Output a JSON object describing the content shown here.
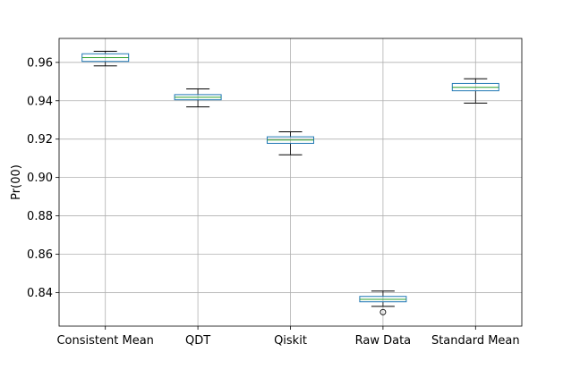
{
  "chart_data": {
    "type": "box",
    "title": "",
    "xlabel": "",
    "ylabel": "Pr(00)",
    "ylim": [
      0.8225,
      0.9725
    ],
    "yticks": [
      0.84,
      0.86,
      0.88,
      0.9,
      0.92,
      0.94,
      0.96
    ],
    "ytick_labels": [
      "0.84",
      "0.86",
      "0.88",
      "0.90",
      "0.92",
      "0.94",
      "0.96"
    ],
    "grid": true,
    "categories": [
      "Consistent Mean",
      "QDT",
      "Qiskit",
      "Raw Data",
      "Standard Mean"
    ],
    "boxes": [
      {
        "whisker_low": 0.9582,
        "q1": 0.9605,
        "median": 0.9625,
        "q3": 0.9645,
        "whisker_high": 0.9658,
        "outliers": []
      },
      {
        "whisker_low": 0.9368,
        "q1": 0.9405,
        "median": 0.9418,
        "q3": 0.9432,
        "whisker_high": 0.9462,
        "outliers": []
      },
      {
        "whisker_low": 0.9118,
        "q1": 0.9178,
        "median": 0.9195,
        "q3": 0.9212,
        "whisker_high": 0.9238,
        "outliers": []
      },
      {
        "whisker_low": 0.8328,
        "q1": 0.8352,
        "median": 0.8365,
        "q3": 0.838,
        "whisker_high": 0.8408,
        "outliers": [
          0.8298
        ]
      },
      {
        "whisker_low": 0.9388,
        "q1": 0.9452,
        "median": 0.947,
        "q3": 0.949,
        "whisker_high": 0.9515,
        "outliers": []
      }
    ],
    "colors": {
      "box": "#1f77b4",
      "median": "#2ca02c",
      "whisker": "#000000",
      "grid": "#b0b0b0"
    }
  }
}
